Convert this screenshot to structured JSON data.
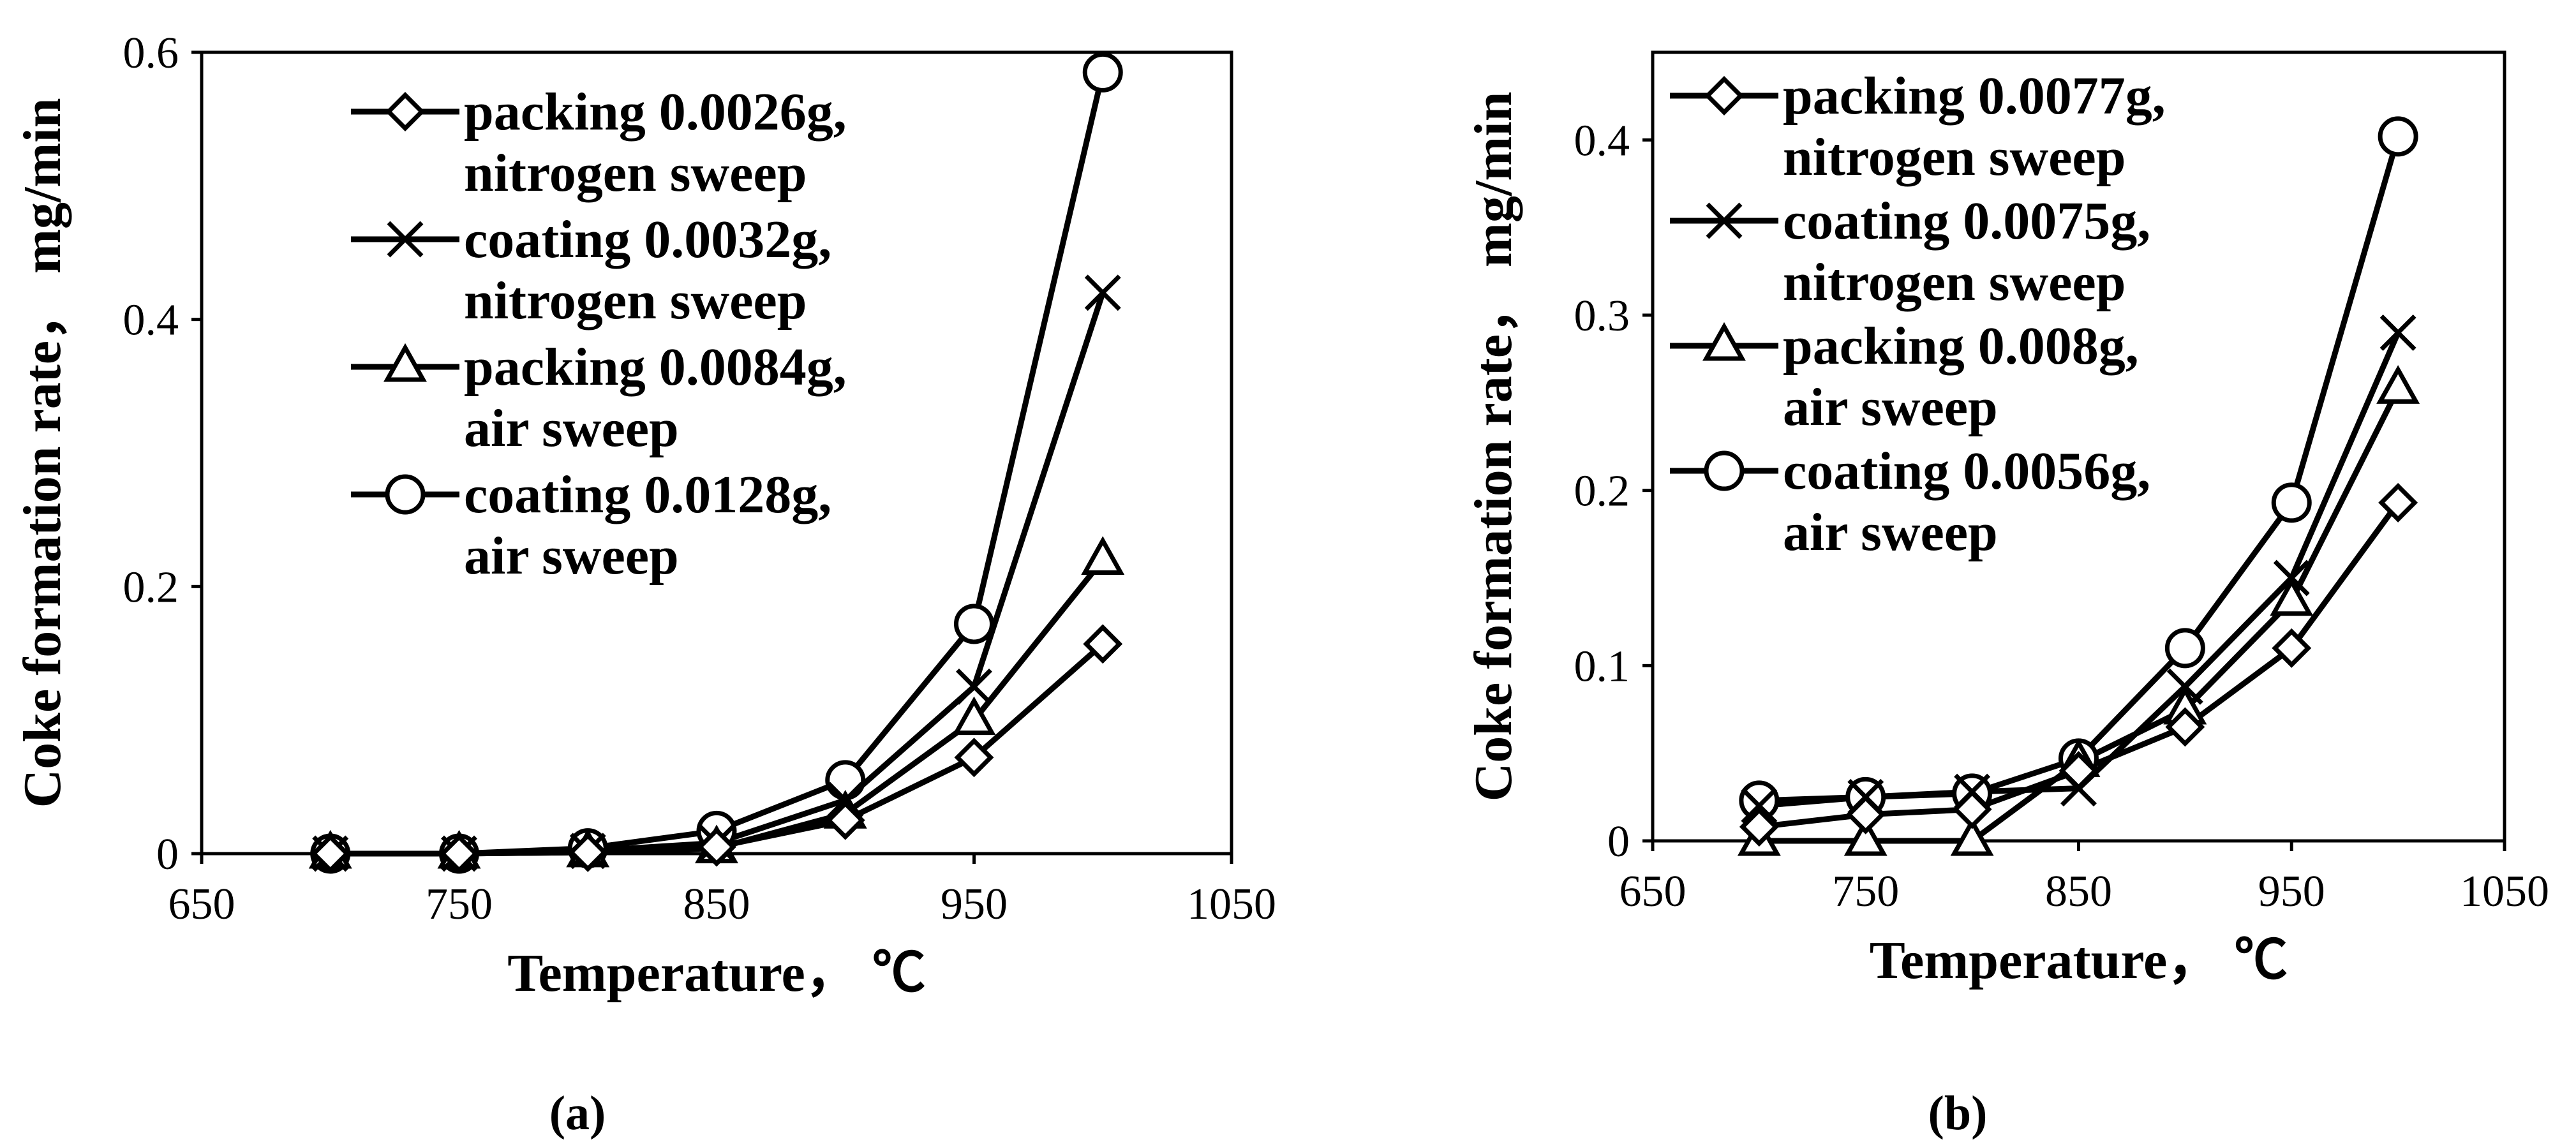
{
  "chart_data": [
    {
      "type": "line",
      "panel_label": "(a)",
      "xlabel": "Temperature， ℃",
      "ylabel": "Coke formation rate， mg/min",
      "xlim": [
        650,
        1050
      ],
      "ylim": [
        0,
        0.6
      ],
      "xticks": [
        "650",
        "750",
        "850",
        "950",
        "1050"
      ],
      "yticks": [
        "0",
        "0.2",
        "0.4",
        "0.6"
      ],
      "legend_position": "top-left",
      "series": [
        {
          "name_line1": "packing 0.0026g,",
          "name_line2": "nitrogen sweep",
          "marker": "diamond",
          "x": [
            700,
            750,
            800,
            850,
            900,
            950,
            1000
          ],
          "y": [
            0,
            0,
            0.001,
            0.005,
            0.025,
            0.072,
            0.157
          ]
        },
        {
          "name_line1": "coating 0.0032g,",
          "name_line2": "nitrogen sweep",
          "marker": "cross",
          "x": [
            700,
            750,
            800,
            850,
            900,
            950,
            1000
          ],
          "y": [
            0,
            0,
            0.002,
            0.008,
            0.04,
            0.125,
            0.42
          ]
        },
        {
          "name_line1": "packing 0.0084g,",
          "name_line2": "air sweep",
          "marker": "triangle",
          "x": [
            700,
            750,
            800,
            850,
            900,
            950,
            1000
          ],
          "y": [
            0,
            0,
            0.001,
            0.004,
            0.03,
            0.1,
            0.22
          ]
        },
        {
          "name_line1": "coating 0.0128g,",
          "name_line2": "air sweep",
          "marker": "circle",
          "x": [
            700,
            750,
            800,
            850,
            900,
            950,
            1000
          ],
          "y": [
            0,
            0,
            0.004,
            0.017,
            0.055,
            0.172,
            0.585
          ]
        }
      ]
    },
    {
      "type": "line",
      "panel_label": "(b)",
      "xlabel": "Temperature， ℃",
      "ylabel": "Coke formation rate， mg/min",
      "xlim": [
        650,
        1050
      ],
      "ylim": [
        0,
        0.45
      ],
      "xticks": [
        "650",
        "750",
        "850",
        "950",
        "1050"
      ],
      "yticks": [
        "0",
        "0.1",
        "0.2",
        "0.3",
        "0.4"
      ],
      "legend_position": "top-left",
      "series": [
        {
          "name_line1": "packing 0.0077g,",
          "name_line2": "nitrogen sweep",
          "marker": "diamond",
          "x": [
            700,
            750,
            800,
            850,
            900,
            950,
            1000
          ],
          "y": [
            0.008,
            0.015,
            0.018,
            0.04,
            0.065,
            0.11,
            0.193
          ]
        },
        {
          "name_line1": "coating 0.0075g,",
          "name_line2": "nitrogen sweep",
          "marker": "cross",
          "x": [
            700,
            750,
            800,
            850,
            900,
            950,
            1000
          ],
          "y": [
            0.02,
            0.025,
            0.028,
            0.03,
            0.088,
            0.15,
            0.29
          ]
        },
        {
          "name_line1": "packing 0.008g,",
          "name_line2": "air sweep",
          "marker": "triangle",
          "x": [
            700,
            750,
            800,
            850,
            900,
            950,
            1000
          ],
          "y": [
            0,
            0,
            0,
            0.045,
            0.075,
            0.137,
            0.258
          ]
        },
        {
          "name_line1": "coating 0.0056g,",
          "name_line2": "air sweep",
          "marker": "circle",
          "x": [
            700,
            750,
            800,
            850,
            900,
            950,
            1000
          ],
          "y": [
            0.023,
            0.025,
            0.027,
            0.047,
            0.11,
            0.193,
            0.402
          ]
        }
      ]
    }
  ]
}
